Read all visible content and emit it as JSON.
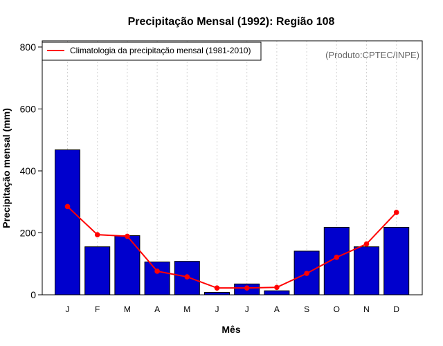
{
  "chart_data": {
    "type": "bar",
    "title": "Precipitação Mensal (1992): Região 108",
    "xlabel": "Mês",
    "ylabel": "Precipitação mensal (mm)",
    "ylim": [
      0,
      820
    ],
    "yticks": [
      0,
      200,
      400,
      600,
      800
    ],
    "categories": [
      "J",
      "F",
      "M",
      "A",
      "M",
      "J",
      "J",
      "A",
      "S",
      "O",
      "N",
      "D"
    ],
    "series": [
      {
        "name": "Precipitação mensal (1992)",
        "type": "bar",
        "color": "#0000cd",
        "values": [
          468,
          155,
          191,
          106,
          108,
          8,
          35,
          13,
          141,
          218,
          155,
          218
        ]
      },
      {
        "name": "Climatologia da precipitação mensal (1981-2010)",
        "type": "line",
        "color": "#ff0000",
        "values": [
          285,
          194,
          189,
          76,
          58,
          22,
          22,
          24,
          69,
          121,
          164,
          266
        ]
      }
    ],
    "legend": {
      "position": "top-left",
      "label": "Climatologia da precipitação mensal (1981-2010)"
    },
    "annotation": "(Produto:CPTEC/INPE)",
    "grid": "vertical-dotted"
  }
}
